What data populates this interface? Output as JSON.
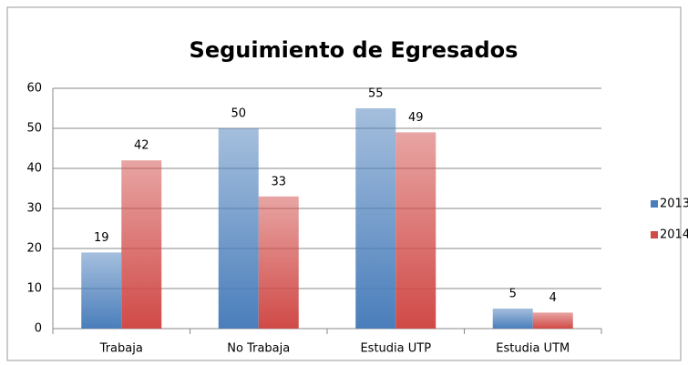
{
  "chart_data": {
    "type": "bar",
    "title": "Seguimiento de Egresados",
    "categories": [
      "Trabaja",
      "No Trabaja",
      "Estudia UTP",
      "Estudia UTM"
    ],
    "series": [
      {
        "name": "2013",
        "color": "#4a7ebb",
        "values": [
          19,
          50,
          55,
          5
        ]
      },
      {
        "name": "2014",
        "color": "#d04a47",
        "values": [
          42,
          33,
          49,
          4
        ]
      }
    ],
    "ylim": [
      0,
      60
    ],
    "yticks": [
      0,
      10,
      20,
      30,
      40,
      50,
      60
    ],
    "grid": true,
    "legend": "right"
  }
}
